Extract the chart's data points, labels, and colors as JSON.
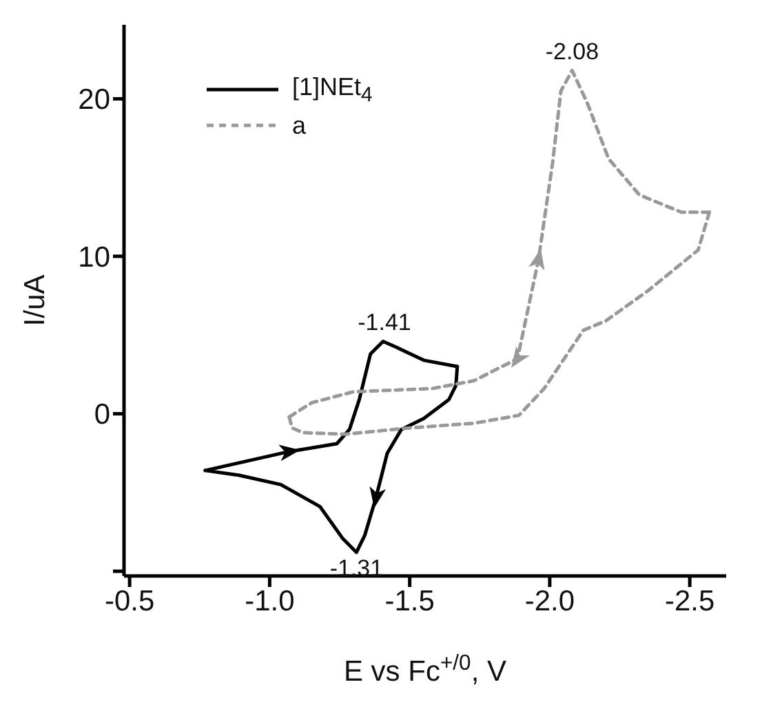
{
  "chart_data": {
    "type": "line",
    "xlabel": "E vs Fc$^{+/0}$, V",
    "ylabel": "I/uA",
    "xlim": [
      -0.48,
      -2.63
    ],
    "ylim": [
      -10.3,
      24.7
    ],
    "xticks": [
      {
        "value": -0.5,
        "label": "-0.5"
      },
      {
        "value": -1.0,
        "label": "-1.0"
      },
      {
        "value": -1.5,
        "label": "-1.5"
      },
      {
        "value": -2.0,
        "label": "-2.0"
      },
      {
        "value": -2.5,
        "label": "-2.5"
      }
    ],
    "yticks": [
      {
        "value": -10,
        "label": null
      },
      0,
      10,
      20
    ],
    "grid": false,
    "legend": "top left",
    "marker": "none",
    "series": [
      {
        "name": "[1]NEt$_{4}$",
        "color": "#000000",
        "line_style": "solid",
        "x": [
          -0.77,
          -1.07,
          -1.24,
          -1.285,
          -1.32,
          -1.36,
          -1.405,
          -1.455,
          -1.55,
          -1.67
        ],
        "values": [
          -3.6,
          -2.4,
          -1.9,
          -1.0,
          0.9,
          3.8,
          4.6,
          4.2,
          3.4,
          3.0
        ]
      },
      {
        "color": "#000000",
        "line_style": "solid",
        "x": [
          -1.67,
          -1.665,
          -1.64,
          -1.55,
          -1.47,
          -1.42,
          -1.38,
          -1.34,
          -1.31,
          -1.26,
          -1.18,
          -1.04,
          -0.89,
          -0.77
        ],
        "values": [
          3.0,
          1.8,
          0.9,
          -0.3,
          -1.0,
          -2.5,
          -5.3,
          -7.7,
          -8.8,
          -7.9,
          -5.9,
          -4.5,
          -3.9,
          -3.6
        ]
      },
      {
        "name": "a",
        "color": "#999999",
        "line_style": "dashed",
        "x": [
          -1.07,
          -1.08,
          -1.12,
          -1.27,
          -1.5,
          -1.73,
          -1.89,
          -1.98,
          -2.12,
          -2.2,
          -2.35,
          -2.53,
          -2.57
        ],
        "values": [
          -0.2,
          -0.9,
          -1.2,
          -1.3,
          -0.9,
          -0.6,
          -0.1,
          1.6,
          5.3,
          5.9,
          7.8,
          10.4,
          12.8
        ]
      },
      {
        "color": "#999999",
        "line_style": "dashed",
        "x": [
          -2.57,
          -2.47,
          -2.32,
          -2.21,
          -2.135,
          -2.08,
          -2.04,
          -2.01,
          -1.96,
          -1.885,
          -1.73,
          -1.58,
          -1.3,
          -1.15,
          -1.07
        ],
        "values": [
          12.8,
          12.8,
          13.9,
          16.2,
          19.7,
          21.8,
          20.5,
          15.9,
          9.8,
          3.5,
          2.1,
          1.6,
          1.4,
          0.7,
          -0.2
        ]
      }
    ],
    "annotations": [
      {
        "text": "-2.08",
        "x": -2.08,
        "y": 21.8
      },
      {
        "text": "-1.41",
        "x": -1.41,
        "y": 4.6
      },
      {
        "text": "-1.31",
        "x": -1.31,
        "y": -8.8
      }
    ]
  }
}
